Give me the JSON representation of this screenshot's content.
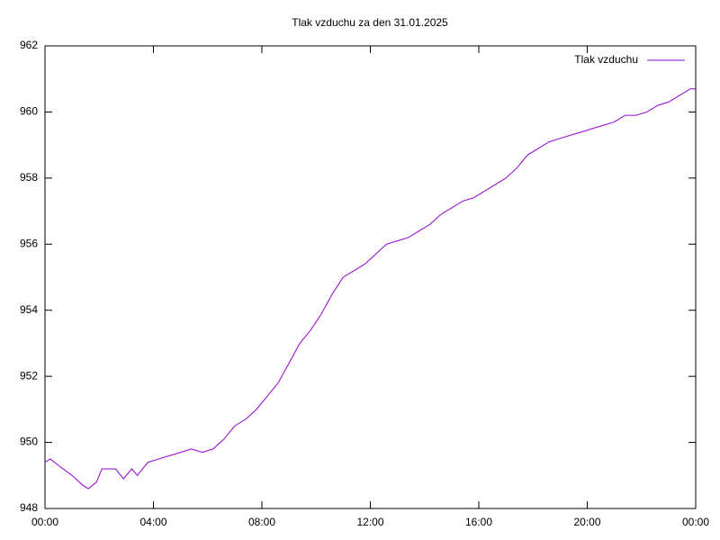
{
  "chart_data": {
    "type": "line",
    "title": "Tlak vzduchu za den 31.01.2025",
    "x": [
      0,
      0.2,
      0.5,
      1.0,
      1.4,
      1.6,
      1.9,
      2.1,
      2.6,
      2.9,
      3.2,
      3.4,
      3.8,
      4.2,
      4.6,
      5.0,
      5.4,
      5.8,
      6.2,
      6.6,
      7.0,
      7.4,
      7.8,
      8.2,
      8.6,
      9.0,
      9.4,
      9.8,
      10.2,
      10.6,
      11.0,
      11.4,
      11.8,
      12.2,
      12.6,
      13.0,
      13.4,
      13.8,
      14.2,
      14.6,
      15.0,
      15.4,
      15.8,
      16.2,
      16.6,
      17.0,
      17.4,
      17.8,
      18.2,
      18.6,
      19.0,
      19.4,
      19.8,
      20.2,
      20.6,
      21.0,
      21.4,
      21.8,
      22.2,
      22.6,
      23.0,
      23.4,
      23.8,
      24.0
    ],
    "series": [
      {
        "name": "Tlak vzduchu",
        "color": "#9400d3",
        "values": [
          949.4,
          949.5,
          949.3,
          949.0,
          948.7,
          948.6,
          948.8,
          949.2,
          949.2,
          948.9,
          949.2,
          949.0,
          949.4,
          949.5,
          949.6,
          949.7,
          949.8,
          949.7,
          949.8,
          950.1,
          950.5,
          950.7,
          951.0,
          951.4,
          951.8,
          952.4,
          953.0,
          953.4,
          953.9,
          954.5,
          955.0,
          955.2,
          955.4,
          955.7,
          956.0,
          956.1,
          956.2,
          956.4,
          956.6,
          956.9,
          957.1,
          957.3,
          957.4,
          957.6,
          957.8,
          958.0,
          958.3,
          958.7,
          958.9,
          959.1,
          959.2,
          959.3,
          959.4,
          959.5,
          959.6,
          959.7,
          959.9,
          959.9,
          960.0,
          960.2,
          960.3,
          960.5,
          960.7,
          960.7
        ]
      }
    ],
    "xlim": [
      0,
      24
    ],
    "xticks": [
      {
        "value": 0,
        "label": "00:00"
      },
      {
        "value": 4,
        "label": "04:00"
      },
      {
        "value": 8,
        "label": "08:00"
      },
      {
        "value": 12,
        "label": "12:00"
      },
      {
        "value": 16,
        "label": "16:00"
      },
      {
        "value": 20,
        "label": "20:00"
      },
      {
        "value": 24,
        "label": "00:00"
      }
    ],
    "ylim": [
      948,
      962
    ],
    "yticks": [
      948,
      950,
      952,
      954,
      956,
      958,
      960,
      962
    ],
    "grid": false,
    "legend": "top-right"
  }
}
